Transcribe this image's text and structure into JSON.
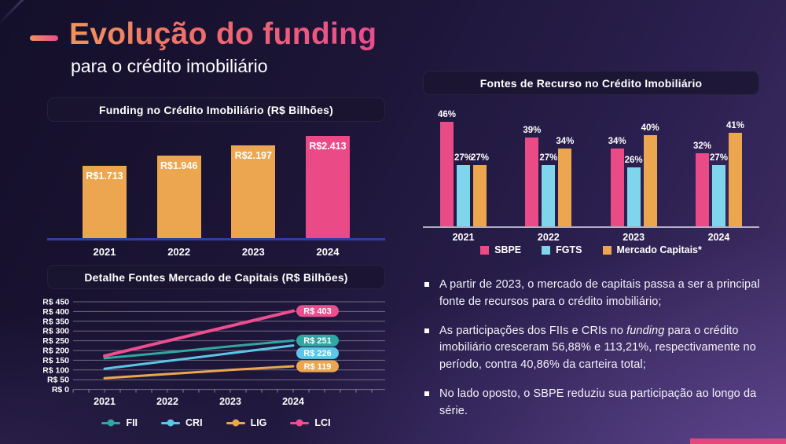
{
  "slide": {
    "title": "Evolução do funding",
    "subtitle": "para o crédito imobiliário"
  },
  "accent_color": "#E8477E",
  "chart_data": [
    {
      "id": "funding",
      "type": "bar",
      "title": "Funding no Crédito Imobiliário (R$ Bilhões)",
      "categories": [
        "2021",
        "2022",
        "2023",
        "2024"
      ],
      "values": [
        1713,
        1946,
        2197,
        2413
      ],
      "bar_labels": [
        "R$1.713",
        "R$1.946",
        "R$2.197",
        "R$2.413"
      ],
      "bar_colors": [
        "#EBA64F",
        "#EBA64F",
        "#EBA64F",
        "#EA4A85"
      ],
      "ylim": [
        0,
        2600
      ],
      "xlabel": "",
      "ylabel": ""
    },
    {
      "id": "fontes",
      "type": "bar",
      "title": "Fontes de Recurso no Crédito Imobiliário",
      "categories": [
        "2021",
        "2022",
        "2023",
        "2024"
      ],
      "series": [
        {
          "name": "SBPE",
          "color": "#EA4A85",
          "values": [
            46,
            39,
            34,
            32
          ]
        },
        {
          "name": "FGTS",
          "color": "#7FD6EC",
          "values": [
            27,
            27,
            26,
            27
          ]
        },
        {
          "name": "Mercado Capitais*",
          "color": "#EBA64F",
          "values": [
            27,
            34,
            40,
            41
          ]
        }
      ],
      "value_suffix": "%",
      "ylim": [
        0,
        50
      ],
      "legend_position": "bottom"
    },
    {
      "id": "mercado_capitais",
      "type": "line",
      "title": "Detalhe Fontes Mercado de Capitais (R$ Bilhões)",
      "x": [
        "2021",
        "2022",
        "2023",
        "2024"
      ],
      "series": [
        {
          "name": "FII",
          "color": "#2FA7A3",
          "values": [
            160,
            190,
            221,
            251
          ],
          "end_label": "R$ 251"
        },
        {
          "name": "CRI",
          "color": "#5BC6E8",
          "values": [
            106,
            146,
            186,
            226
          ],
          "end_label": "R$ 226"
        },
        {
          "name": "LIG",
          "color": "#EBA64F",
          "values": [
            58,
            79,
            100,
            119
          ],
          "end_label": "R$ 119"
        },
        {
          "name": "LCI",
          "color": "#EC4E8E",
          "values": [
            172,
            249,
            326,
            403
          ],
          "end_label": "R$ 403"
        }
      ],
      "y_ticks": [
        "R$ 450",
        "R$ 400",
        "R$ 350",
        "R$ 300",
        "R$ 250",
        "R$ 200",
        "R$ 150",
        "R$ 100",
        "R$ 50",
        "R$ 0"
      ],
      "ylim": [
        0,
        450
      ],
      "grid": true,
      "legend_position": "bottom"
    }
  ],
  "insights": [
    {
      "parts": [
        {
          "text": "A partir de 2023, o mercado de capitais passa a ser a principal fonte de recursos para o crédito imobiliário;"
        }
      ]
    },
    {
      "parts": [
        {
          "text": "As participações dos FIIs e CRIs no "
        },
        {
          "text": "funding",
          "italic": true
        },
        {
          "text": " para o crédito imobiliário cresceram 56,88% e 113,21%, respectivamente no período, contra 40,86% da carteira total;"
        }
      ]
    },
    {
      "parts": [
        {
          "text": "No lado oposto, o SBPE reduziu sua participação ao longo da série."
        }
      ]
    }
  ]
}
